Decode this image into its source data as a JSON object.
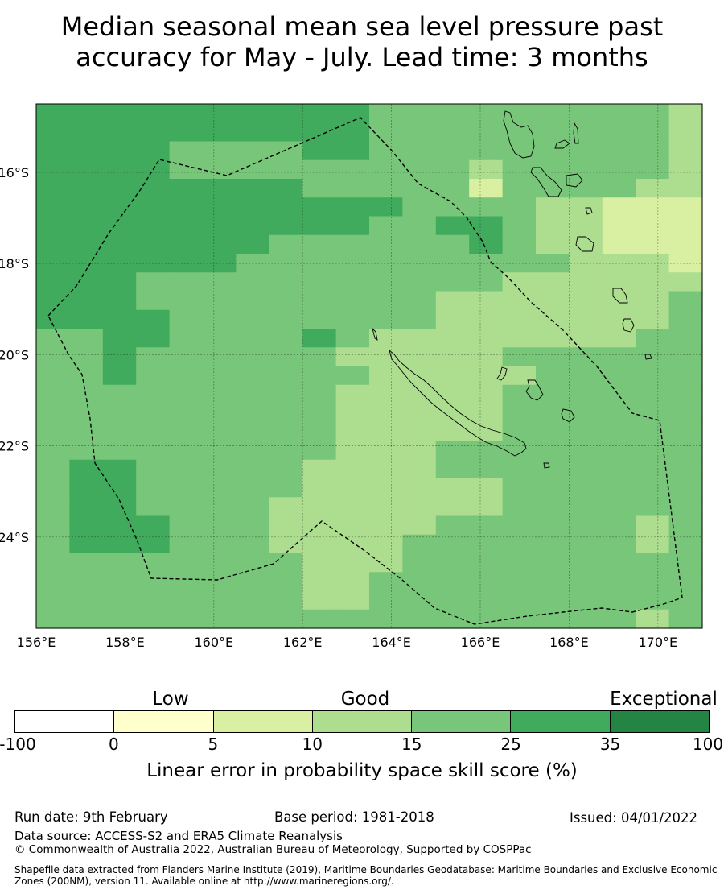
{
  "title_line1": "Median seasonal mean sea level pressure past",
  "title_line2": "accuracy for May - July. Lead time: 3 months",
  "map": {
    "lon_range": [
      156,
      171
    ],
    "lat_range": [
      -26.0,
      -14.5
    ],
    "lon_ticks": [
      "156°E",
      "158°E",
      "160°E",
      "162°E",
      "164°E",
      "166°E",
      "168°E",
      "170°E"
    ],
    "lat_ticks": [
      "16°S",
      "18°S",
      "20°S",
      "22°S",
      "24°S"
    ],
    "grid": true,
    "boundary_style": "dashed",
    "land": [
      "New Caledonia",
      "Loyalty Islands",
      "Vanuatu",
      "Chesterfield Islands"
    ]
  },
  "colorbar": {
    "boundaries": [
      "-100",
      "0",
      "5",
      "10",
      "15",
      "25",
      "35",
      "100"
    ],
    "colors": [
      "#ffffff",
      "#ffffcc",
      "#d9f0a3",
      "#addd8e",
      "#78c679",
      "#41ab5d",
      "#238443"
    ],
    "categories": [
      "Low",
      "Good",
      "Exceptional"
    ],
    "label": "Linear error in probability space skill score (%)"
  },
  "footer": {
    "run_date": "Run date: 9th February",
    "base_period": "Base period: 1981-2018",
    "issued": "Issued: 04/01/2022",
    "data_source": "Data source: ACCESS-S2 and ERA5 Climate Reanalysis",
    "copyright": "© Commonwealth of Australia 2022, Australian Bureau of Meteorology, Supported by COSPPac",
    "shapefile": "Shapefile data extracted from Flanders Marine Institute (2019), Maritime Boundaries Geodatabase: Maritime Boundaries and Exclusive Economic Zones (200NM), version 11. Available online at http://www.marineregions.org/."
  }
}
